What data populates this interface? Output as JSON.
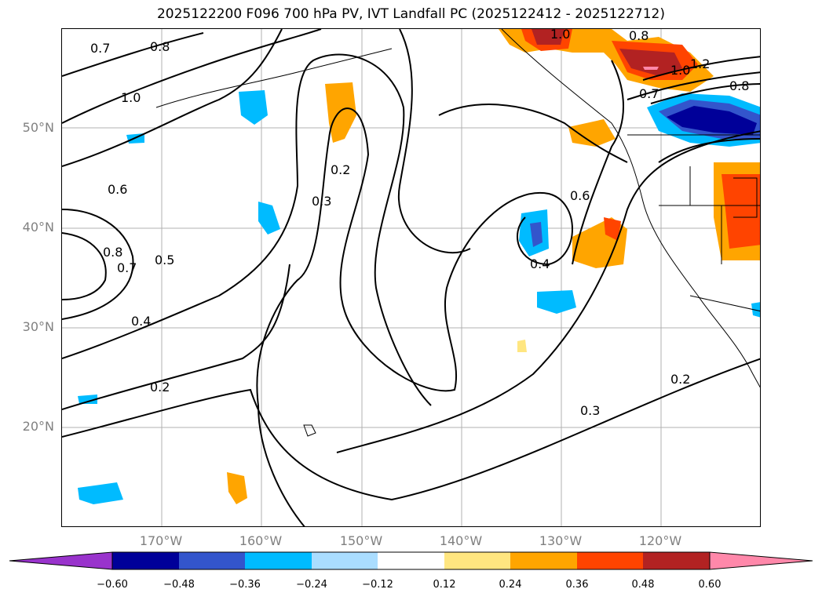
{
  "title": "2025122200 F096 700 hPa PV, IVT Landfall PC (2025122412 - 2025122712)",
  "latitude_labels": [
    "50°N",
    "40°N",
    "30°N",
    "20°N"
  ],
  "longitude_labels": [
    "170°W",
    "160°W",
    "150°W",
    "140°W",
    "130°W",
    "120°W"
  ],
  "contour_labels": [
    "0.7",
    "0.8",
    "1.0",
    "0.6",
    "0.8",
    "0.7",
    "0.5",
    "0.4",
    "0.3",
    "0.2",
    "0.2",
    "0.4",
    "0.6",
    "0.3",
    "0.2",
    "1.0",
    "0.8",
    "1.0",
    "1.2",
    "0.8",
    "0.7"
  ],
  "colorbar": {
    "ticks": [
      "−0.60",
      "−0.48",
      "−0.36",
      "−0.24",
      "−0.12",
      "0.12",
      "0.24",
      "0.36",
      "0.48",
      "0.60"
    ],
    "colors": [
      "#9933cc",
      "#000099",
      "#3355cc",
      "#00bbff",
      "#aaddff",
      "#ffffff",
      "#ffe680",
      "#ffa500",
      "#ff4400",
      "#b22222",
      "#ff88aa",
      "#ff88aa"
    ]
  }
}
